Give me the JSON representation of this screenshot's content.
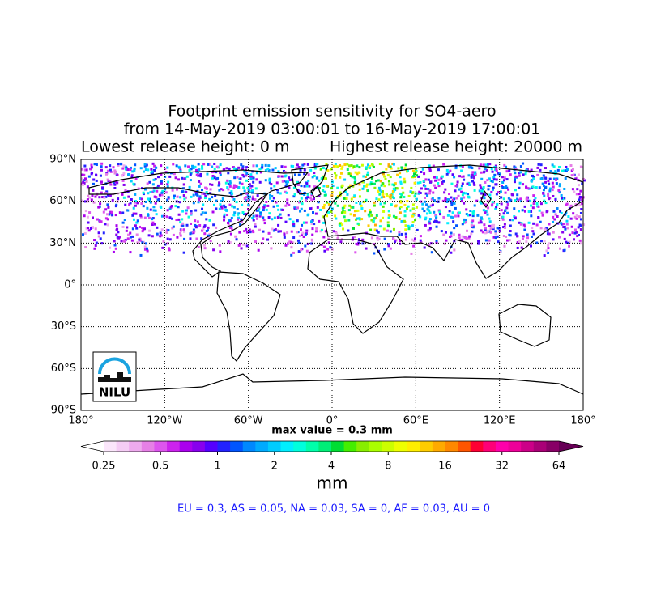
{
  "header": {
    "title": "Footprint emission sensitivity for SO4-aero",
    "period": "from 14-May-2019 03:00:01 to 16-May-2019 17:00:01",
    "lowest": "Lowest release height: 0 m",
    "highest": "Highest release height: 20000 m"
  },
  "map": {
    "xlim": [
      -180,
      180
    ],
    "ylim": [
      -90,
      90
    ],
    "xticks": [
      {
        "value": -180,
        "label": "180°"
      },
      {
        "value": -120,
        "label": "120°W"
      },
      {
        "value": -60,
        "label": "60°W"
      },
      {
        "value": 0,
        "label": "0°"
      },
      {
        "value": 60,
        "label": "60°E"
      },
      {
        "value": 120,
        "label": "120°E"
      },
      {
        "value": 180,
        "label": "180°"
      }
    ],
    "yticks": [
      {
        "value": -90,
        "label": "90°S"
      },
      {
        "value": -60,
        "label": "60°S"
      },
      {
        "value": -30,
        "label": "30°S"
      },
      {
        "value": 0,
        "label": "0°"
      },
      {
        "value": 30,
        "label": "30°N"
      },
      {
        "value": 60,
        "label": "60°N"
      },
      {
        "value": 90,
        "label": "90°N"
      }
    ],
    "logo": "NILU"
  },
  "max_value": "max value = 0.3 mm",
  "colorbar": {
    "log_scale": true,
    "lim": [
      0.25,
      64
    ],
    "ticks": [
      0.25,
      0.5,
      1,
      2,
      4,
      8,
      16,
      32,
      64
    ],
    "unit": "mm",
    "colors": [
      "#ffffff",
      "#fbe6fb",
      "#f5ccf5",
      "#eeaaee",
      "#e680e6",
      "#dd55ee",
      "#cc22ee",
      "#aa00ee",
      "#8800ee",
      "#5500ff",
      "#2222ff",
      "#0055ff",
      "#0088ff",
      "#00aaff",
      "#00ccff",
      "#00eeff",
      "#00ffdd",
      "#00ffaa",
      "#00ee77",
      "#00dd33",
      "#44ee00",
      "#88ee00",
      "#aaff00",
      "#ccff00",
      "#eeff00",
      "#ffee00",
      "#ffcc00",
      "#ffaa00",
      "#ff8800",
      "#ff5500",
      "#ff0033",
      "#ff0077",
      "#ff00aa",
      "#ee0099",
      "#cc0088",
      "#aa0077",
      "#880066",
      "#660055"
    ]
  },
  "summary": "EU = 0.3,  AS = 0.05,  NA = 0.03,  SA = 0,  AF = 0.03,  AU = 0"
}
